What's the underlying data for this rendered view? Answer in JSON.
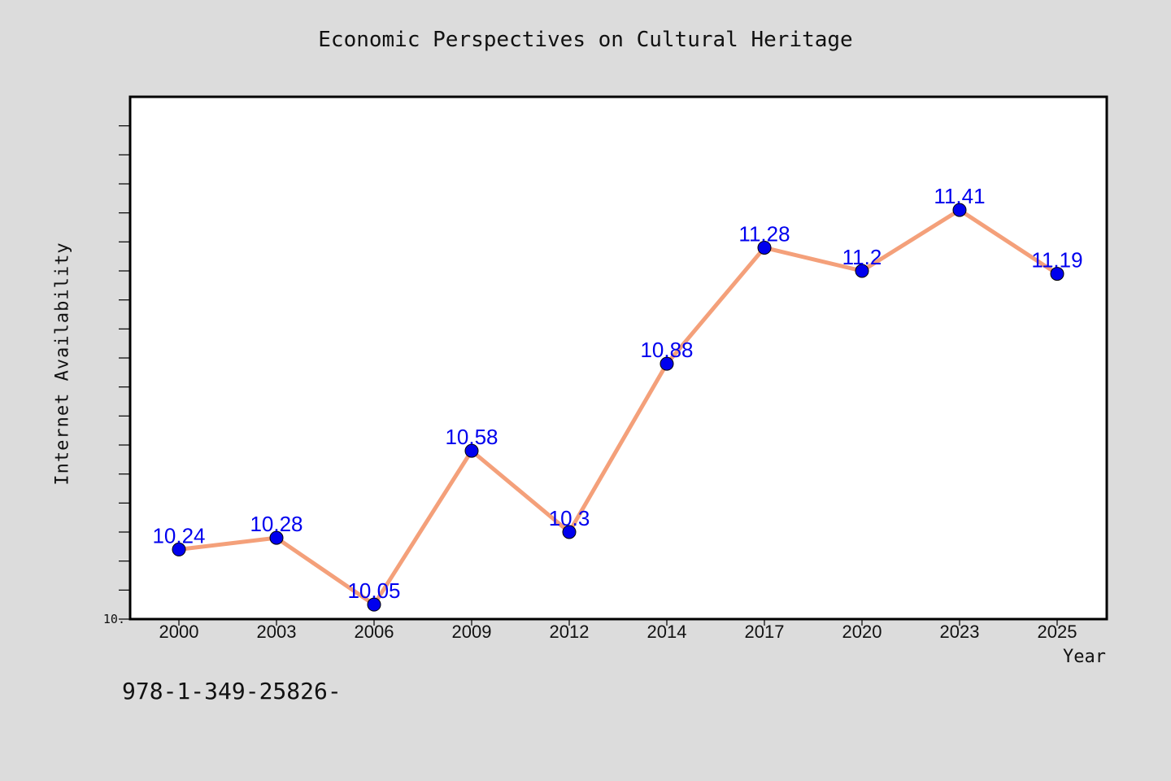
{
  "chart_data": {
    "type": "line",
    "title": "Economic Perspectives on Cultural Heritage",
    "xlabel": "Year",
    "ylabel": "Internet Availability",
    "categories": [
      "2000",
      "2003",
      "2006",
      "2009",
      "2012",
      "2014",
      "2017",
      "2020",
      "2023",
      "2025"
    ],
    "series": [
      {
        "values": [
          10.24,
          10.28,
          10.05,
          10.58,
          10.3,
          10.88,
          11.28,
          11.2,
          11.41,
          11.19
        ],
        "data_labels": [
          "10.24",
          "10.28",
          "10.05",
          "10.58",
          "10.3",
          "10.88",
          "11.28",
          "11.2",
          "11.41",
          "11.19"
        ],
        "line_color": "#f4a07a",
        "marker_color": "#0000ee"
      }
    ],
    "ylim": [
      10.0,
      11.8
    ],
    "y_tick_label": "10.",
    "label_color": "#0000ee",
    "grid": false,
    "legend": "none"
  },
  "footer": {
    "code": "978-1-349-25826-"
  }
}
